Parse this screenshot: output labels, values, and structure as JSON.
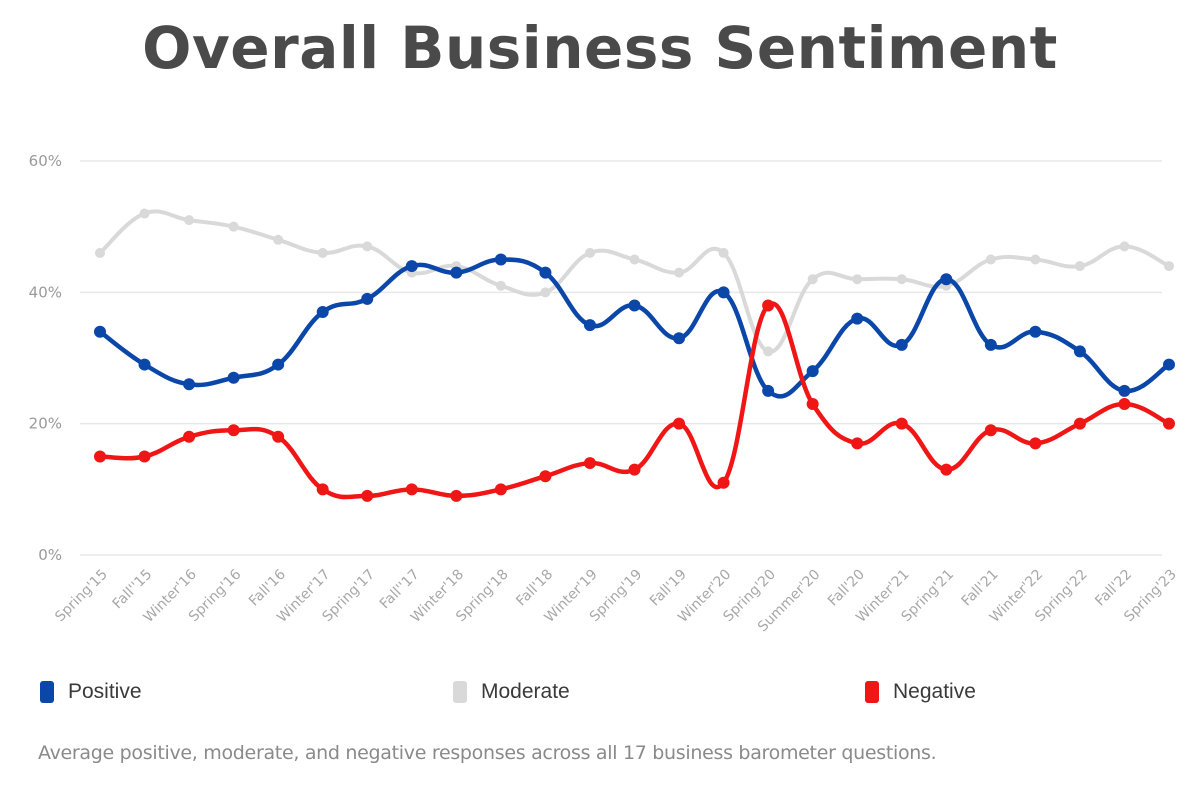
{
  "chart_data": {
    "type": "line",
    "title": "Overall Business Sentiment",
    "xlabel": "",
    "ylabel": "",
    "ylim": [
      0,
      60
    ],
    "yticks": [
      "0%",
      "20%",
      "40%",
      "60%"
    ],
    "ytick_values": [
      0,
      20,
      40,
      60
    ],
    "grid": true,
    "legend_position": "bottom",
    "categories": [
      "Spring'15",
      "Fall''15",
      "Winter'16",
      "Spring'16",
      "Fall'16",
      "Winter'17",
      "Spring'17",
      "Fall''17",
      "Winter'18",
      "Spring'18",
      "Fall'18",
      "Winter'19",
      "Spring'19",
      "Fall'19",
      "Winter'20",
      "Spring'20",
      "Summer'20",
      "Fall'20",
      "Winter'21",
      "Spring'21",
      "Fall'21",
      "Winter'22",
      "Spring'22",
      "Fall'22",
      "Spring'23"
    ],
    "series": [
      {
        "name": "Positive",
        "color": "#0a47a8",
        "values": [
          34,
          29,
          26,
          27,
          29,
          37,
          39,
          44,
          43,
          45,
          43,
          35,
          38,
          33,
          40,
          25,
          28,
          36,
          32,
          42,
          32,
          34,
          31,
          25,
          29
        ]
      },
      {
        "name": "Moderate",
        "color": "#d9d9d9",
        "values": [
          46,
          52,
          51,
          50,
          48,
          46,
          47,
          43,
          44,
          41,
          40,
          46,
          45,
          43,
          46,
          31,
          42,
          42,
          42,
          41,
          45,
          45,
          44,
          47,
          44
        ]
      },
      {
        "name": "Negative",
        "color": "#f01616",
        "values": [
          15,
          15,
          18,
          19,
          18,
          10,
          9,
          10,
          9,
          10,
          12,
          14,
          13,
          20,
          11,
          38,
          23,
          17,
          20,
          13,
          19,
          17,
          20,
          23,
          20
        ]
      }
    ],
    "caption": "Average positive, moderate, and negative responses across all 17 business barometer questions."
  }
}
